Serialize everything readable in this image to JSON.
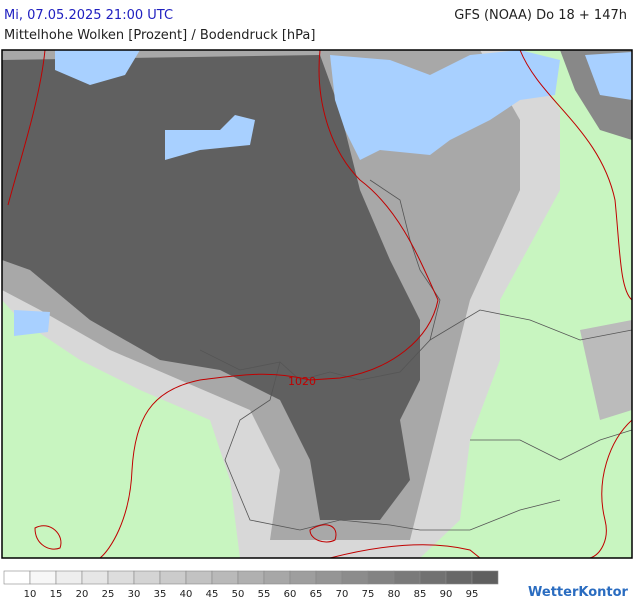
{
  "header": {
    "datetime": "Mi, 07.05.2025 21:00 UTC",
    "model": "GFS (NOAA) Do 18 + 147h",
    "subtitle": "Mittelhohe Wolken [Prozent] / Bodendruck [hPa]"
  },
  "map": {
    "isobar_label": "1020"
  },
  "legend": {
    "colors": [
      "#ffffff",
      "#f7f7f7",
      "#eeeeee",
      "#e6e6e6",
      "#dddddd",
      "#d4d4d4",
      "#cbcbcb",
      "#c2c2c2",
      "#b9b9b9",
      "#b0b0b0",
      "#a7a7a7",
      "#9e9e9e",
      "#959595",
      "#8c8c8c",
      "#838383",
      "#7a7a7a",
      "#717171",
      "#686868",
      "#5f5f5f"
    ],
    "labels": [
      10,
      15,
      20,
      25,
      30,
      35,
      40,
      45,
      50,
      55,
      60,
      65,
      70,
      75,
      80,
      85,
      90,
      95
    ]
  },
  "brand": "WetterKontor"
}
